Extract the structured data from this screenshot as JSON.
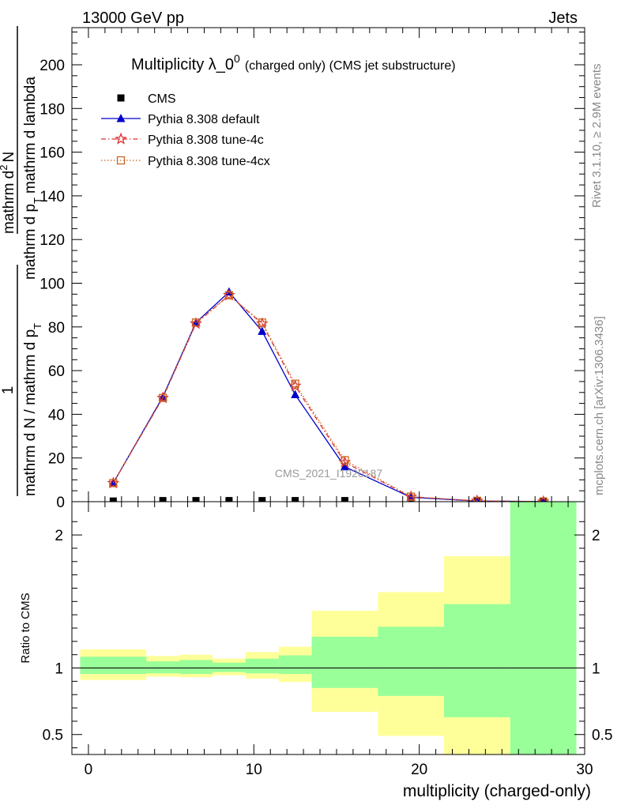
{
  "header": {
    "energy_label": "13000 GeV pp",
    "category_label": "Jets"
  },
  "side_labels": {
    "rivet": "Rivet 3.1.10, ≥ 2.9M events",
    "mcplots": "mcplots.cern.ch [arXiv:1306.3436]"
  },
  "watermark": "CMS_2021_I1920187",
  "chart_data": [
    {
      "type": "line",
      "title_main": "Multiplicity λ_0",
      "title_sup": "0",
      "title_sub": "(charged only) (CMS jet substructure)",
      "ylabel_numerator": "1",
      "ylabel_denominator": "mathrm d N / mathrm d p",
      "ylabel_denominator_sub": "T",
      "ylabel_upper_num": "mathrm d",
      "ylabel_upper_num_sup": "2",
      "ylabel_upper_num_tail": "N",
      "ylabel_upper_den": "mathrm d p",
      "ylabel_upper_den_sub": "T",
      "ylabel_upper_den_tail": "mathrm d lambda",
      "xlim": [
        -1,
        30
      ],
      "ylim": [
        0,
        217
      ],
      "yticks": [
        0,
        20,
        40,
        60,
        80,
        100,
        120,
        140,
        160,
        180,
        200
      ],
      "legend_placement": "top-left",
      "x": [
        1.5,
        4.5,
        6.5,
        8.5,
        10.5,
        12.5,
        15.5,
        19.5,
        23.5,
        27.5
      ],
      "series": [
        {
          "name": "CMS",
          "color": "#000000",
          "marker": "square",
          "values": [
            0.3,
            0.5,
            0.5,
            0.5,
            0.5,
            0.5,
            0.5,
            0.3,
            0.2,
            0.3
          ]
        },
        {
          "name": "Pythia 8.308 default",
          "color": "#0000cc",
          "marker": "triangle",
          "dash": "solid",
          "values": [
            8.5,
            48,
            82,
            96,
            78,
            49,
            16,
            2,
            0.3,
            0.05
          ]
        },
        {
          "name": "Pythia 8.308 tune-4c",
          "color": "#dd3333",
          "marker": "star",
          "dash": "dashdot",
          "values": [
            8.5,
            47.5,
            81.5,
            94.5,
            81.5,
            53,
            18,
            2.2,
            0.35,
            0.05
          ]
        },
        {
          "name": "Pythia 8.308 tune-4cx",
          "color": "#cc6622",
          "marker": "open-square",
          "dash": "dotted",
          "values": [
            8.5,
            47.5,
            82,
            94.5,
            82,
            54,
            19,
            2.3,
            0.4,
            0.05
          ]
        }
      ]
    },
    {
      "type": "area",
      "ylabel": "Ratio to CMS",
      "xlabel": "multiplicity (charged-only)",
      "xlim": [
        -1,
        30
      ],
      "ylim": [
        0.35,
        2.25
      ],
      "yticks": [
        0.5,
        1,
        2
      ],
      "xticks": [
        0,
        10,
        20,
        30
      ],
      "reference_line": 1,
      "bins": [
        {
          "lo": -0.5,
          "hi": 3.5,
          "yellow": [
            0.91,
            1.14
          ],
          "green": [
            0.955,
            1.085
          ]
        },
        {
          "lo": 3.5,
          "hi": 5.5,
          "yellow": [
            0.935,
            1.09
          ],
          "green": [
            0.96,
            1.05
          ]
        },
        {
          "lo": 5.5,
          "hi": 7.5,
          "yellow": [
            0.93,
            1.1
          ],
          "green": [
            0.955,
            1.06
          ]
        },
        {
          "lo": 7.5,
          "hi": 9.5,
          "yellow": [
            0.945,
            1.07
          ],
          "green": [
            0.97,
            1.04
          ]
        },
        {
          "lo": 9.5,
          "hi": 11.5,
          "yellow": [
            0.92,
            1.12
          ],
          "green": [
            0.96,
            1.07
          ]
        },
        {
          "lo": 11.5,
          "hi": 13.5,
          "yellow": [
            0.895,
            1.16
          ],
          "green": [
            0.955,
            1.095
          ]
        },
        {
          "lo": 13.5,
          "hi": 17.5,
          "yellow": [
            0.67,
            1.43
          ],
          "green": [
            0.85,
            1.235
          ]
        },
        {
          "lo": 17.5,
          "hi": 21.5,
          "yellow": [
            0.49,
            1.57
          ],
          "green": [
            0.79,
            1.31
          ]
        },
        {
          "lo": 21.5,
          "hi": 25.5,
          "yellow": [
            0.35,
            1.84
          ],
          "green": [
            0.63,
            1.48
          ]
        },
        {
          "lo": 25.5,
          "hi": 29.5,
          "yellow": [
            0.35,
            2.25
          ],
          "green": [
            0.35,
            2.25
          ]
        }
      ],
      "colors": {
        "yellow": "#ffff99",
        "green": "#99ff99"
      }
    }
  ]
}
